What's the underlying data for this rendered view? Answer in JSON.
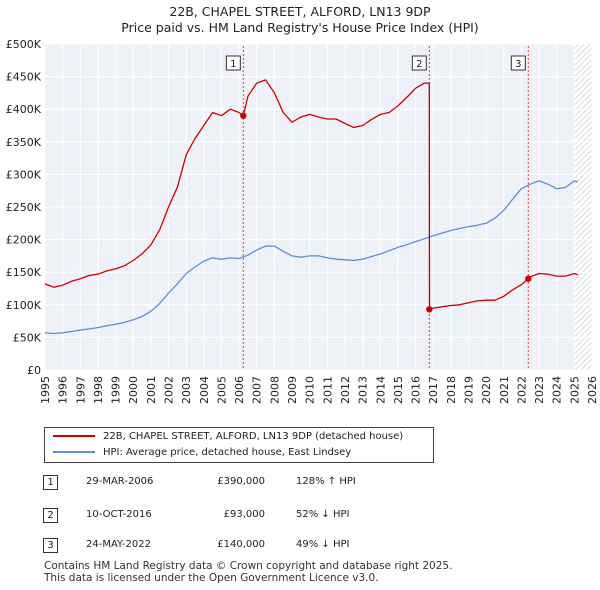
{
  "title_line1": "22B, CHAPEL STREET, ALFORD, LN13 9DP",
  "title_line2": "Price paid vs. HM Land Registry's House Price Index (HPI)",
  "chart_data": {
    "type": "line",
    "title": "22B, CHAPEL STREET, ALFORD, LN13 9DP — Price paid vs. HM Land Registry's House Price Index (HPI)",
    "xlim": [
      1995,
      2026
    ],
    "ylim": [
      0,
      500000
    ],
    "y_ticks": [
      0,
      50000,
      100000,
      150000,
      200000,
      250000,
      300000,
      350000,
      400000,
      450000,
      500000
    ],
    "y_tick_labels": [
      "£0",
      "£50K",
      "£100K",
      "£150K",
      "£200K",
      "£250K",
      "£300K",
      "£350K",
      "£400K",
      "£450K",
      "£500K"
    ],
    "x_ticks": [
      1995,
      1996,
      1997,
      1998,
      1999,
      2000,
      2001,
      2002,
      2003,
      2004,
      2005,
      2006,
      2007,
      2008,
      2009,
      2010,
      2011,
      2012,
      2013,
      2014,
      2015,
      2016,
      2017,
      2018,
      2019,
      2020,
      2021,
      2022,
      2023,
      2024,
      2025,
      2026
    ],
    "x_tick_labels": [
      "1995",
      "1996",
      "1997",
      "1998",
      "1999",
      "2000",
      "2001",
      "2002",
      "2003",
      "2004",
      "2005",
      "2006",
      "2007",
      "2008",
      "2009",
      "2010",
      "2011",
      "2012",
      "2013",
      "2014",
      "2015",
      "2016",
      "2017",
      "2018",
      "2019",
      "2020",
      "2021",
      "2022",
      "2023",
      "2024",
      "2025",
      "2026"
    ],
    "grid": true,
    "forecast_from": 2025.0,
    "series": [
      {
        "name": "22B, CHAPEL STREET, ALFORD, LN13 9DP (detached house)",
        "color": "#cc0000",
        "x": [
          1995.0,
          1995.5,
          1996.0,
          1996.5,
          1997.0,
          1997.5,
          1998.0,
          1998.5,
          1999.0,
          1999.5,
          2000.0,
          2000.5,
          2001.0,
          2001.5,
          2002.0,
          2002.5,
          2003.0,
          2003.5,
          2004.0,
          2004.5,
          2005.0,
          2005.5,
          2006.0,
          2006.24,
          2006.5,
          2007.0,
          2007.5,
          2008.0,
          2008.5,
          2009.0,
          2009.5,
          2010.0,
          2010.5,
          2011.0,
          2011.5,
          2012.0,
          2012.5,
          2013.0,
          2013.5,
          2014.0,
          2014.5,
          2015.0,
          2015.5,
          2016.0,
          2016.5,
          2016.78,
          2016.79,
          2017.0,
          2017.5,
          2018.0,
          2018.5,
          2019.0,
          2019.5,
          2020.0,
          2020.5,
          2021.0,
          2021.5,
          2022.0,
          2022.39,
          2022.5,
          2023.0,
          2023.5,
          2024.0,
          2024.5,
          2025.0,
          2025.2
        ],
        "values": [
          132000,
          127000,
          130000,
          136000,
          140000,
          145000,
          147000,
          152000,
          155000,
          160000,
          168000,
          178000,
          192000,
          215000,
          250000,
          280000,
          330000,
          355000,
          375000,
          395000,
          390000,
          400000,
          395000,
          390000,
          420000,
          440000,
          445000,
          425000,
          395000,
          380000,
          388000,
          392000,
          388000,
          385000,
          385000,
          378000,
          372000,
          375000,
          384000,
          392000,
          395000,
          405000,
          418000,
          432000,
          440000,
          440000,
          93000,
          95000,
          97000,
          99000,
          100000,
          103000,
          106000,
          107000,
          107000,
          113000,
          123000,
          131000,
          140000,
          143000,
          148000,
          147000,
          144000,
          144000,
          148000,
          146000
        ]
      },
      {
        "name": "HPI: Average price, detached house, East Lindsey",
        "color": "#5b8fd1",
        "x": [
          1995.0,
          1995.5,
          1996.0,
          1996.5,
          1997.0,
          1997.5,
          1998.0,
          1998.5,
          1999.0,
          1999.5,
          2000.0,
          2000.5,
          2001.0,
          2001.5,
          2002.0,
          2002.5,
          2003.0,
          2003.5,
          2004.0,
          2004.5,
          2005.0,
          2005.5,
          2006.0,
          2006.5,
          2007.0,
          2007.5,
          2008.0,
          2008.5,
          2009.0,
          2009.5,
          2010.0,
          2010.5,
          2011.0,
          2011.5,
          2012.0,
          2012.5,
          2013.0,
          2013.5,
          2014.0,
          2014.5,
          2015.0,
          2015.5,
          2016.0,
          2016.5,
          2017.0,
          2017.5,
          2018.0,
          2018.5,
          2019.0,
          2019.5,
          2020.0,
          2020.5,
          2021.0,
          2021.5,
          2022.0,
          2022.5,
          2023.0,
          2023.5,
          2024.0,
          2024.5,
          2025.0,
          2025.2
        ],
        "values": [
          57000,
          56000,
          57000,
          59000,
          61000,
          63000,
          65000,
          68000,
          70000,
          73000,
          77000,
          82000,
          90000,
          102000,
          118000,
          132000,
          148000,
          158000,
          167000,
          172000,
          170000,
          172000,
          171000,
          176000,
          184000,
          190000,
          190000,
          182000,
          175000,
          173000,
          175000,
          175000,
          172000,
          170000,
          169000,
          168000,
          170000,
          174000,
          178000,
          183000,
          188000,
          192000,
          197000,
          201000,
          206000,
          210000,
          214000,
          217000,
          220000,
          222000,
          225000,
          233000,
          245000,
          262000,
          278000,
          285000,
          290000,
          285000,
          278000,
          280000,
          290000,
          288000
        ]
      }
    ],
    "transactions": [
      {
        "id": "1",
        "date": "29-MAR-2006",
        "x": 2006.24,
        "price_value": 390000,
        "price": "£390,000",
        "hpi": "128% ↑ HPI"
      },
      {
        "id": "2",
        "date": "10-OCT-2016",
        "x": 2016.78,
        "price_value": 93000,
        "price": "£93,000",
        "hpi": "52% ↓ HPI"
      },
      {
        "id": "3",
        "date": "24-MAY-2022",
        "x": 2022.39,
        "price_value": 140000,
        "price": "£140,000",
        "hpi": "49% ↓ HPI"
      }
    ]
  },
  "legend": {
    "item1": "22B, CHAPEL STREET, ALFORD, LN13 9DP (detached house)",
    "item2": "HPI: Average price, detached house, East Lindsey"
  },
  "footer_line1": "Contains HM Land Registry data © Crown copyright and database right 2025.",
  "footer_line2": "This data is licensed under the Open Government Licence v3.0."
}
